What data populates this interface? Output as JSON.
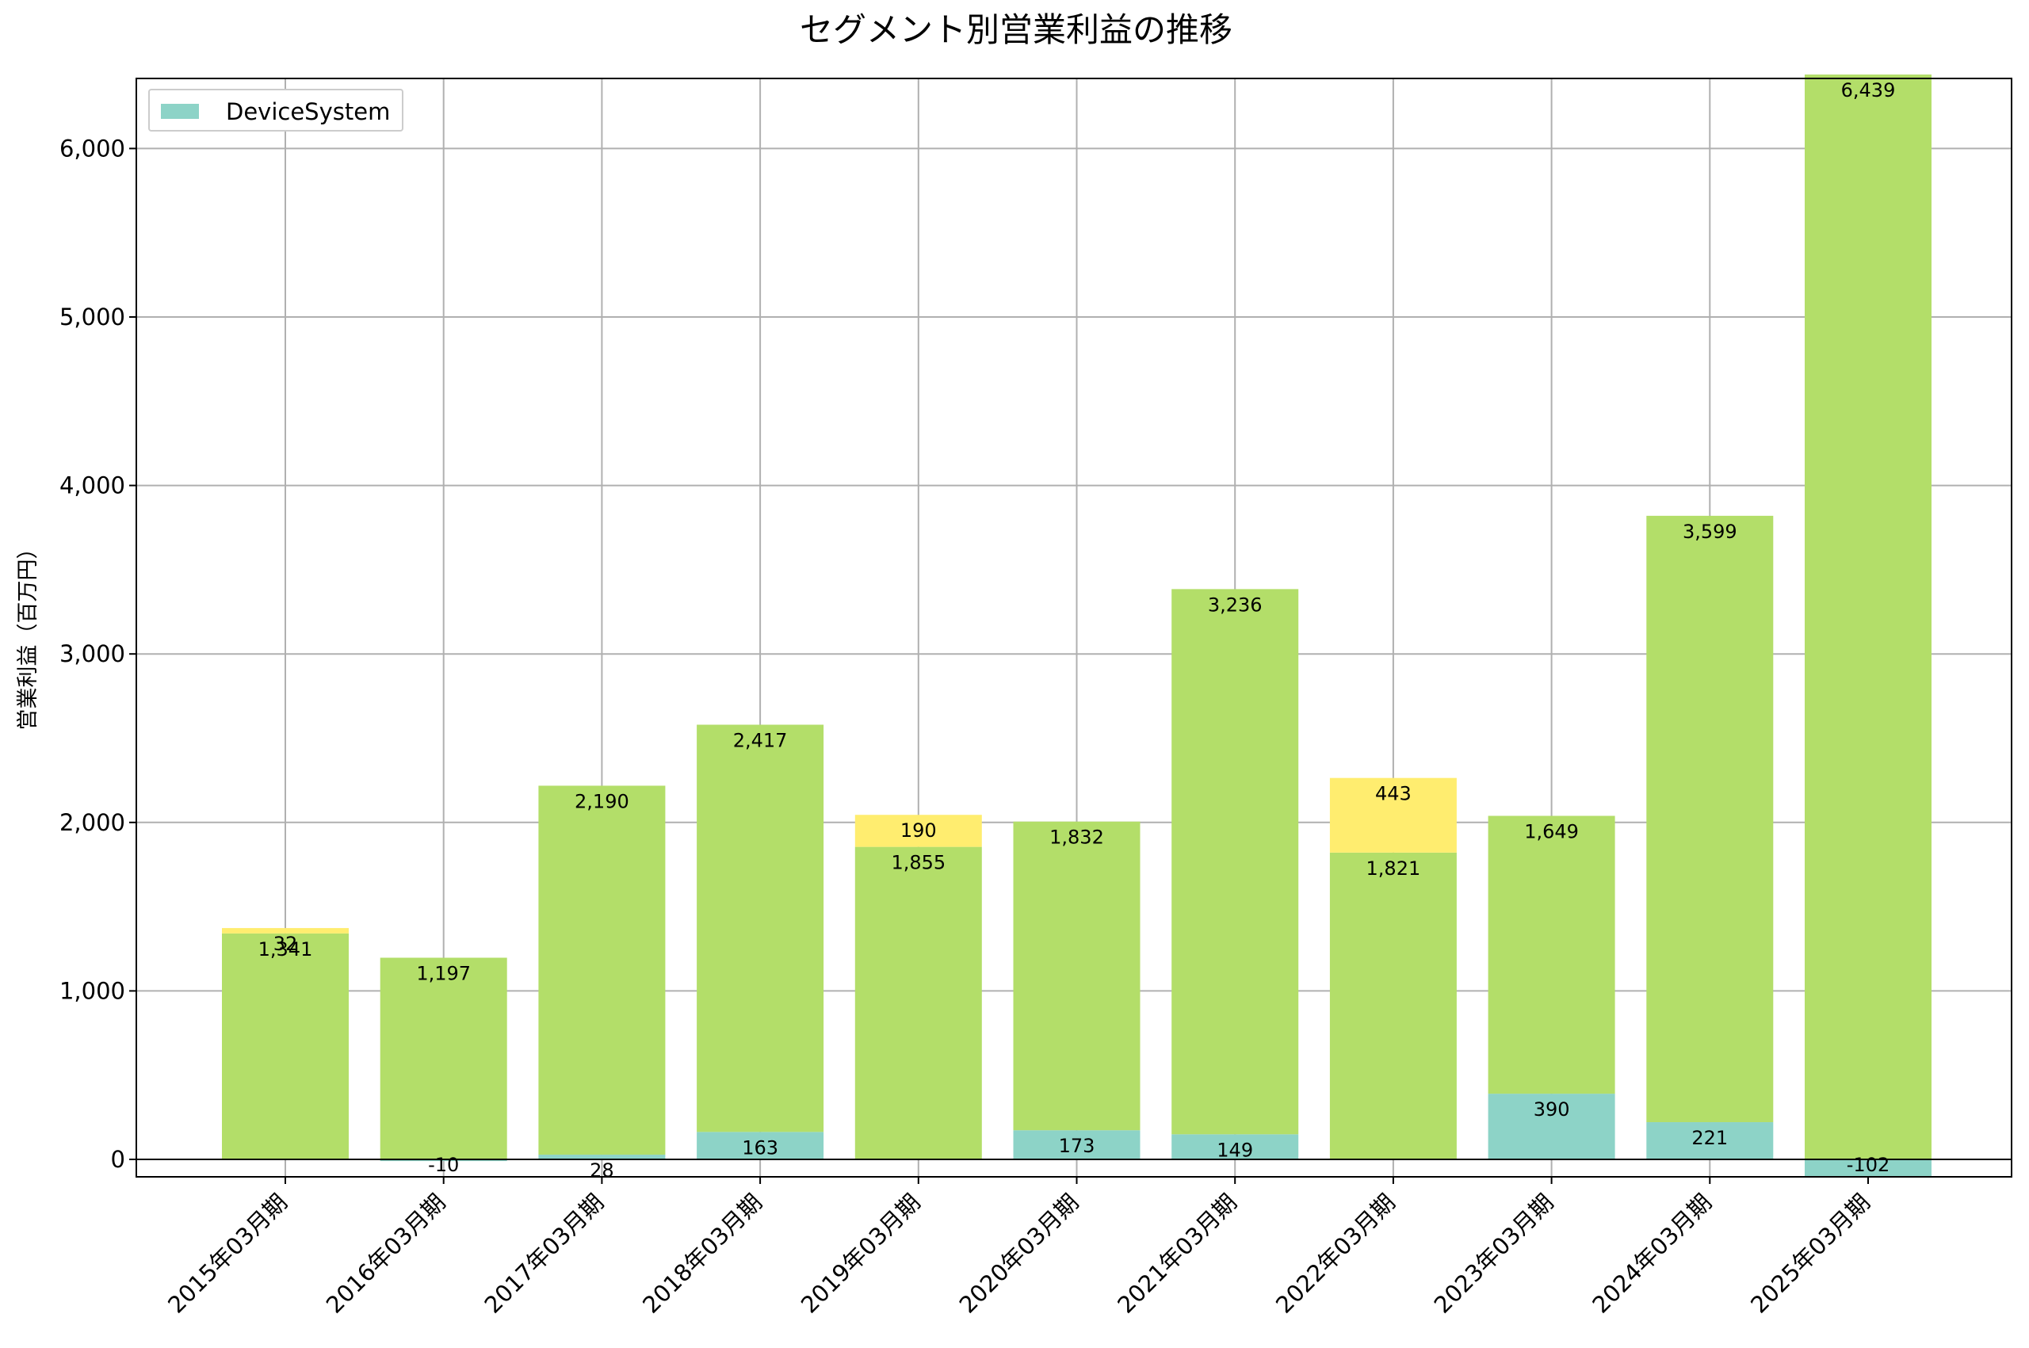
{
  "chart_data": {
    "type": "bar",
    "stacked": true,
    "title": "セグメント別営業利益の推移",
    "xlabel": "",
    "ylabel": "営業利益（百万円）",
    "ylim": [
      -100,
      6440
    ],
    "yticks": [
      0,
      1000,
      2000,
      3000,
      4000,
      5000,
      6000
    ],
    "ytick_labels": [
      "0",
      "1,000",
      "2,000",
      "3,000",
      "4,000",
      "5,000",
      "6,000"
    ],
    "grid": true,
    "legend_position": "top-left",
    "categories": [
      "2015年03月期",
      "2016年03月期",
      "2017年03月期",
      "2018年03月期",
      "2019年03月期",
      "2020年03月期",
      "2021年03月期",
      "2022年03月期",
      "2023年03月期",
      "2024年03月期",
      "2025年03月期"
    ],
    "series": [
      {
        "name": "DeviceSystem",
        "color": "#8dd3c7",
        "in_legend": true,
        "values": [
          0,
          -10,
          28,
          163,
          0,
          173,
          149,
          0,
          390,
          221,
          -102
        ],
        "labels": [
          "",
          "-10",
          "28",
          "163",
          "",
          "173",
          "149",
          "",
          "390",
          "221",
          "-102"
        ]
      },
      {
        "name": "",
        "color": "#b3de69",
        "in_legend": false,
        "values": [
          1341,
          1197,
          2190,
          2417,
          1855,
          1832,
          3236,
          1821,
          1649,
          3599,
          6439
        ],
        "labels": [
          "1,341",
          "1,197",
          "2,190",
          "2,417",
          "1,855",
          "1,832",
          "3,236",
          "1,821",
          "1,649",
          "3,599",
          "6,439"
        ]
      },
      {
        "name": "",
        "color": "#ffed6f",
        "in_legend": false,
        "values": [
          32,
          0,
          0,
          0,
          190,
          0,
          0,
          443,
          0,
          0,
          0
        ],
        "labels": [
          "32",
          "",
          "",
          "",
          "190",
          "",
          "",
          "443",
          "",
          "",
          ""
        ]
      }
    ]
  }
}
